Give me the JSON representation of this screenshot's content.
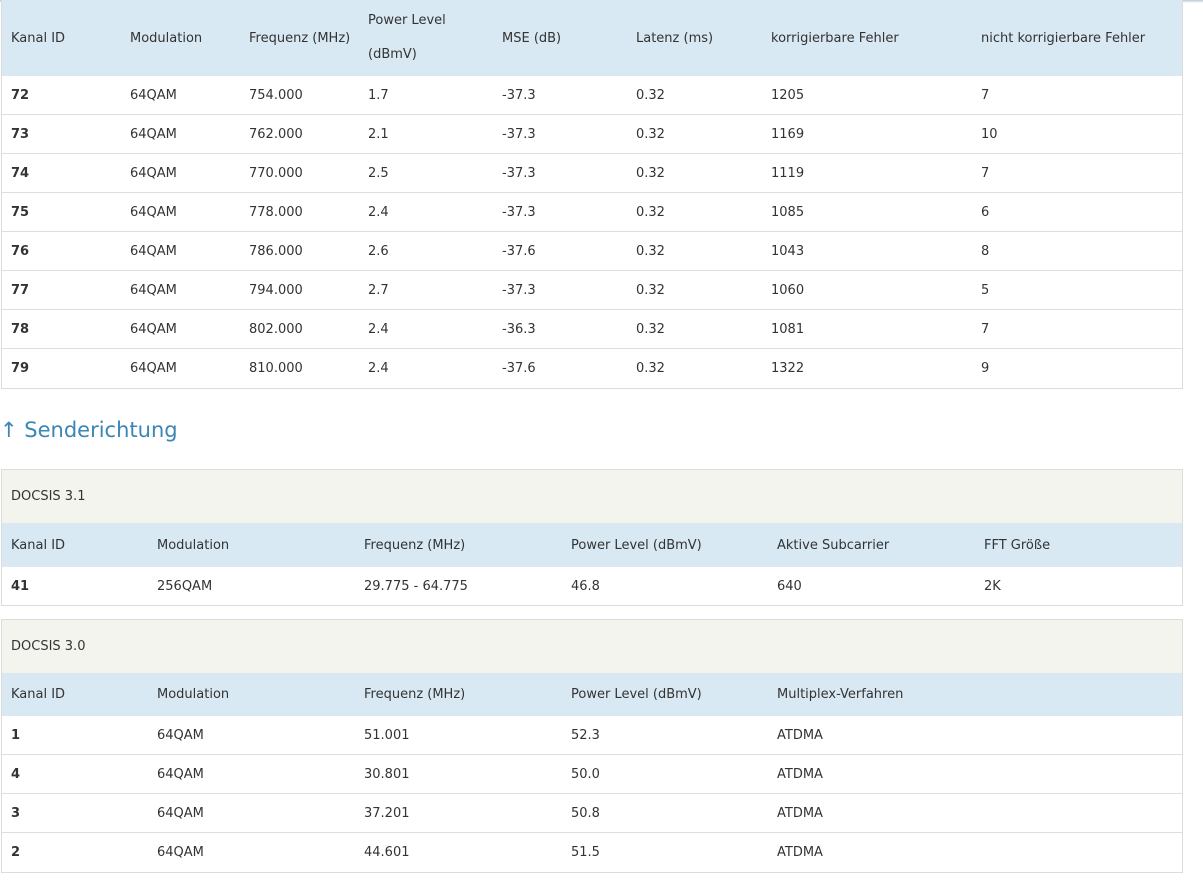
{
  "downstream": {
    "headers": [
      "Kanal ID",
      "Modulation",
      "Frequenz (MHz)",
      "Power Level (dBmV)",
      "MSE (dB)",
      "Latenz (ms)",
      "korrigierbare Fehler",
      "nicht korrigierbare Fehler"
    ],
    "power_level_line1": "Power Level",
    "power_level_line2": "(dBmV)",
    "rows": [
      [
        "72",
        "64QAM",
        "754.000",
        "1.7",
        "-37.3",
        "0.32",
        "1205",
        "7"
      ],
      [
        "73",
        "64QAM",
        "762.000",
        "2.1",
        "-37.3",
        "0.32",
        "1169",
        "10"
      ],
      [
        "74",
        "64QAM",
        "770.000",
        "2.5",
        "-37.3",
        "0.32",
        "1119",
        "7"
      ],
      [
        "75",
        "64QAM",
        "778.000",
        "2.4",
        "-37.3",
        "0.32",
        "1085",
        "6"
      ],
      [
        "76",
        "64QAM",
        "786.000",
        "2.6",
        "-37.6",
        "0.32",
        "1043",
        "8"
      ],
      [
        "77",
        "64QAM",
        "794.000",
        "2.7",
        "-37.3",
        "0.32",
        "1060",
        "5"
      ],
      [
        "78",
        "64QAM",
        "802.000",
        "2.4",
        "-36.3",
        "0.32",
        "1081",
        "7"
      ],
      [
        "79",
        "64QAM",
        "810.000",
        "2.4",
        "-37.6",
        "0.32",
        "1322",
        "9"
      ]
    ]
  },
  "upstream": {
    "title": "↑ Senderichtung",
    "docsis31": {
      "label": "DOCSIS 3.1",
      "headers": [
        "Kanal ID",
        "Modulation",
        "Frequenz (MHz)",
        "Power Level (dBmV)",
        "Aktive Subcarrier",
        "FFT Größe"
      ],
      "rows": [
        [
          "41",
          "256QAM",
          "29.775 - 64.775",
          "46.8",
          "640",
          "2K"
        ]
      ]
    },
    "docsis30": {
      "label": "DOCSIS 3.0",
      "headers": [
        "Kanal ID",
        "Modulation",
        "Frequenz (MHz)",
        "Power Level (dBmV)",
        "Multiplex-Verfahren"
      ],
      "rows": [
        [
          "1",
          "64QAM",
          "51.001",
          "52.3",
          "ATDMA"
        ],
        [
          "4",
          "64QAM",
          "30.801",
          "50.0",
          "ATDMA"
        ],
        [
          "3",
          "64QAM",
          "37.201",
          "50.8",
          "ATDMA"
        ],
        [
          "2",
          "64QAM",
          "44.601",
          "51.5",
          "ATDMA"
        ]
      ]
    }
  },
  "colors": {
    "header_bg": "#d8e9f3",
    "group_bg": "#f4f4ef",
    "title_blue": "#3a86b5",
    "border": "#dedede"
  }
}
